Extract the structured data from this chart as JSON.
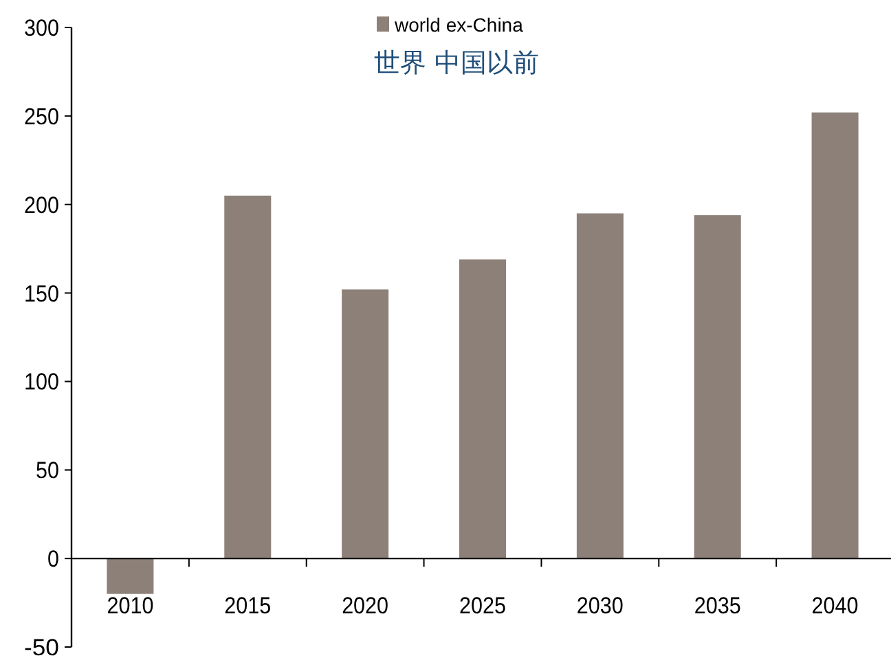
{
  "chart_data": {
    "type": "bar",
    "categories": [
      "2010",
      "2015",
      "2020",
      "2025",
      "2030",
      "2035",
      "2040"
    ],
    "series": [
      {
        "name": "world ex-China",
        "color": "#8c8078",
        "values": [
          -20,
          205,
          152,
          169,
          195,
          194,
          252
        ]
      }
    ],
    "annotations": [
      "世界 中国以前"
    ],
    "ylim": [
      -50,
      300
    ],
    "yticks": [
      -50,
      0,
      50,
      100,
      150,
      200,
      250,
      300
    ],
    "legend": "top",
    "grid": false
  }
}
